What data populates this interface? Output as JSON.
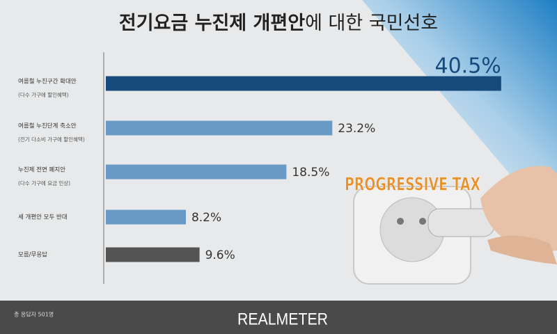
{
  "chart_data": {
    "type": "bar",
    "title": [
      "전기요금 누진제 개편안",
      "에 대한 국민선호"
    ],
    "categories": [
      "여름철 누진구간 확대안",
      "여름철 누진단계 축소안",
      "누진제 전면 폐지안",
      "세 개편안 모두 반대",
      "모름/무응답"
    ],
    "category_notes": [
      "(다수 가구에 할인혜택)",
      "(전기 다소비 가구에 할인혜택)",
      "(다수 가구에 요금 인상)",
      null,
      null
    ],
    "values": [
      40.5,
      23.2,
      18.5,
      8.2,
      9.6
    ],
    "value_labels": [
      "40.5%",
      "23.2%",
      "18.5%",
      "8.2%",
      "9.6%"
    ],
    "colors": [
      "#174a7c",
      "#6a9ac6",
      "#6a9ac6",
      "#6a9ac6",
      "#545454"
    ],
    "footnote": "총 응답자 501명",
    "source": "REALMETER",
    "image_text": "PROGRESSIVE TAX"
  }
}
